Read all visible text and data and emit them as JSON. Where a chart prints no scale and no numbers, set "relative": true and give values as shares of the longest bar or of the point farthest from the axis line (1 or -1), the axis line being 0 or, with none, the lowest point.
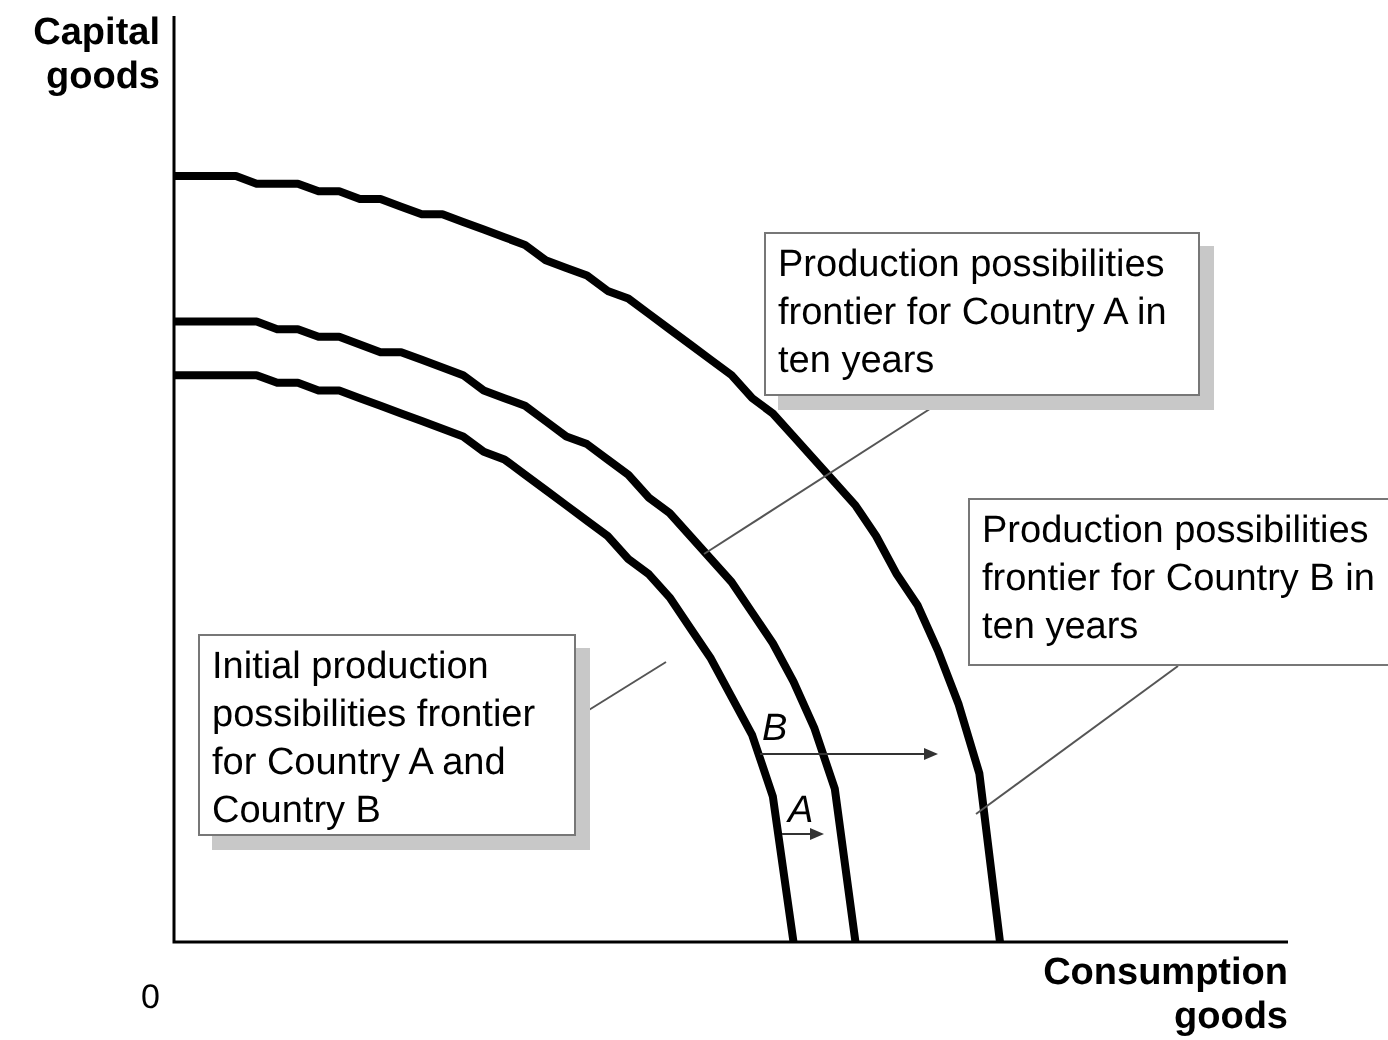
{
  "chart_data": {
    "type": "line",
    "relative": true,
    "xlabel": "Consumption goods",
    "ylabel": "Capital goods",
    "marker": "none",
    "categories": [
      null,
      null,
      null,
      null,
      null,
      null,
      null,
      null,
      null,
      null,
      null,
      null,
      null,
      null,
      null,
      null,
      null,
      null,
      null,
      null,
      null,
      null,
      null,
      null,
      null,
      null,
      null,
      null,
      null,
      null,
      null,
      null,
      null,
      null,
      null,
      null,
      null,
      null,
      null,
      null,
      null
    ],
    "annotations": [
      "Production possibilities frontier for Country A in ten years",
      "Initial production possibilities frontier for Country A and Country B",
      "Production possibilities frontier for Country B in ten years",
      "0",
      "B",
      "A"
    ],
    "series": [
      {
        "color": "#000000",
        "values": [
          1,
          1,
          1,
          1,
          0.99,
          0.99,
          0.99,
          0.98,
          0.98,
          0.97,
          0.97,
          0.96,
          0.95,
          0.95,
          0.94,
          0.93,
          0.92,
          0.91,
          0.89,
          0.88,
          0.87,
          0.85,
          0.84,
          0.82,
          0.8,
          0.78,
          0.76,
          0.74,
          0.71,
          0.69,
          0.66,
          0.63,
          0.6,
          0.57,
          0.53,
          0.48,
          0.44,
          0.38,
          0.31,
          0.22,
          0
        ]
      },
      {
        "color": "#000000",
        "values": [
          0.81,
          0.81,
          0.81,
          0.81,
          0.81,
          0.8,
          0.8,
          0.79,
          0.79,
          0.78,
          0.77,
          0.77,
          0.76,
          0.75,
          0.74,
          0.72,
          0.71,
          0.7,
          0.68,
          0.66,
          0.65,
          0.63,
          0.61,
          0.58,
          0.56,
          0.53,
          0.5,
          0.47,
          0.43,
          0.39,
          0.34,
          0.28,
          0.2,
          0,
          null,
          null,
          null,
          null,
          null,
          null,
          null
        ]
      },
      {
        "color": "#000000",
        "values": [
          0.74,
          0.74,
          0.74,
          0.74,
          0.74,
          0.73,
          0.73,
          0.72,
          0.72,
          0.71,
          0.7,
          0.69,
          0.68,
          0.67,
          0.66,
          0.64,
          0.63,
          0.61,
          0.59,
          0.57,
          0.55,
          0.53,
          0.5,
          0.48,
          0.45,
          0.41,
          0.37,
          0.32,
          0.27,
          0.19,
          0,
          null,
          null,
          null,
          null,
          null,
          null,
          null,
          null,
          null,
          null
        ]
      }
    ]
  }
}
